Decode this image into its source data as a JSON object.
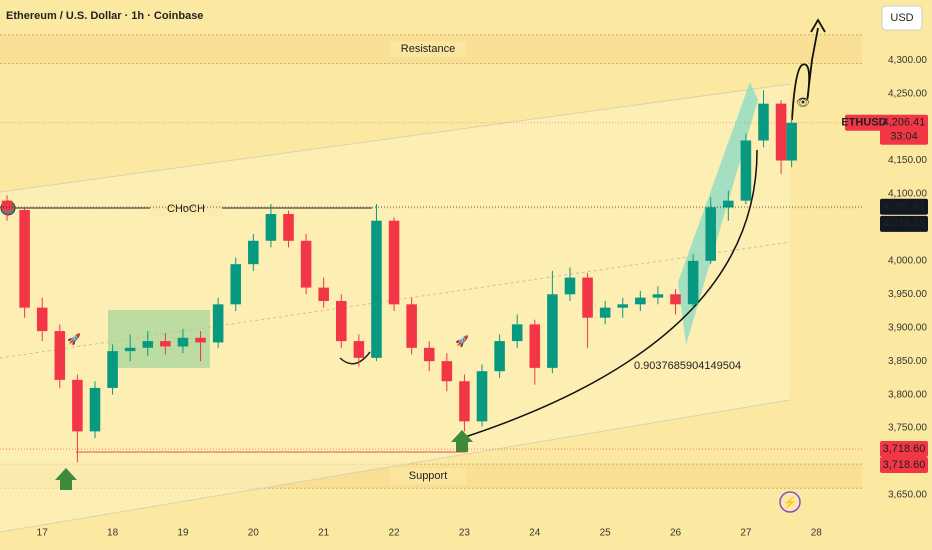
{
  "chart_data": {
    "type": "candlestick",
    "title": "Ethereum / U.S. Dollar · 1h · Coinbase",
    "currency": "USD",
    "symbol": "ETHUSD",
    "countdown": "33:04",
    "annotations": {
      "resistance": "Resistance",
      "support": "Support",
      "choch": "CHoCH",
      "fib": "0.9037685904149504"
    },
    "zones": [
      {
        "name": "Resistance",
        "low": 4295,
        "high": 4338
      },
      {
        "name": "Support",
        "low": 3660,
        "high": 3696
      }
    ],
    "up_color": "#089981",
    "down_color": "#f23645",
    "xlim": [
      16.4,
      28.65
    ],
    "xticks": [
      17,
      18,
      19,
      20,
      21,
      22,
      23,
      24,
      25,
      26,
      27,
      28
    ],
    "ylim": [
      3620,
      4390
    ],
    "yticks": [
      {
        "value": 3650,
        "label": "3,650.00"
      },
      {
        "value": 3700,
        "label": "3,700.00"
      },
      {
        "value": 3750,
        "label": "3,750.00"
      },
      {
        "value": 3800,
        "label": "3,800.00"
      },
      {
        "value": 3850,
        "label": "3,850.00"
      },
      {
        "value": 3900,
        "label": "3,900.00"
      },
      {
        "value": 3950,
        "label": "3,950.00"
      },
      {
        "value": 4000,
        "label": "4,000.00"
      },
      {
        "value": 4050,
        "label": "4,050.00"
      },
      {
        "value": 4100,
        "label": "4,100.00"
      },
      {
        "value": 4150,
        "label": "4,150.00"
      },
      {
        "value": 4200,
        "label": "4,200.00"
      },
      {
        "value": 4250,
        "label": "4,250.00"
      },
      {
        "value": 4300,
        "label": "4,300.00"
      }
    ],
    "price_labels": [
      {
        "value": 4206.41,
        "label": "4,206.41",
        "color": "#f23645"
      },
      {
        "value": 4080.81,
        "label": "4,080.81",
        "color": "#131722"
      },
      {
        "value": 4079.29,
        "label": "4,079.29",
        "color": "#131722"
      },
      {
        "value": 3718.6,
        "label": "3,718.60",
        "color": "#f23645"
      },
      {
        "value": 3718.6,
        "label": "3,718.60",
        "color": "#f23645"
      }
    ],
    "candles": [
      {
        "x": 16.5,
        "open": 4090,
        "high": 4098,
        "low": 4060,
        "close": 4076
      },
      {
        "x": 16.75,
        "open": 4076,
        "high": 4080,
        "low": 3915,
        "close": 3930
      },
      {
        "x": 17.0,
        "open": 3930,
        "high": 3945,
        "low": 3880,
        "close": 3895
      },
      {
        "x": 17.25,
        "open": 3895,
        "high": 3905,
        "low": 3810,
        "close": 3822
      },
      {
        "x": 17.5,
        "open": 3822,
        "high": 3830,
        "low": 3699,
        "close": 3745
      },
      {
        "x": 17.75,
        "open": 3745,
        "high": 3820,
        "low": 3735,
        "close": 3810
      },
      {
        "x": 18.0,
        "open": 3810,
        "high": 3875,
        "low": 3800,
        "close": 3865
      },
      {
        "x": 18.25,
        "open": 3865,
        "high": 3890,
        "low": 3850,
        "close": 3870
      },
      {
        "x": 18.5,
        "open": 3870,
        "high": 3895,
        "low": 3858,
        "close": 3880
      },
      {
        "x": 18.75,
        "open": 3880,
        "high": 3892,
        "low": 3860,
        "close": 3872
      },
      {
        "x": 19.0,
        "open": 3872,
        "high": 3898,
        "low": 3862,
        "close": 3885
      },
      {
        "x": 19.25,
        "open": 3885,
        "high": 3895,
        "low": 3850,
        "close": 3878
      },
      {
        "x": 19.5,
        "open": 3878,
        "high": 3945,
        "low": 3870,
        "close": 3935
      },
      {
        "x": 19.75,
        "open": 3935,
        "high": 4005,
        "low": 3925,
        "close": 3995
      },
      {
        "x": 20.0,
        "open": 3995,
        "high": 4040,
        "low": 3985,
        "close": 4030
      },
      {
        "x": 20.25,
        "open": 4030,
        "high": 4085,
        "low": 4020,
        "close": 4070
      },
      {
        "x": 20.5,
        "open": 4070,
        "high": 4075,
        "low": 4020,
        "close": 4030
      },
      {
        "x": 20.75,
        "open": 4030,
        "high": 4040,
        "low": 3950,
        "close": 3960
      },
      {
        "x": 21.0,
        "open": 3960,
        "high": 3975,
        "low": 3930,
        "close": 3940
      },
      {
        "x": 21.25,
        "open": 3940,
        "high": 3950,
        "low": 3870,
        "close": 3880
      },
      {
        "x": 21.5,
        "open": 3880,
        "high": 3890,
        "low": 3842,
        "close": 3855
      },
      {
        "x": 21.75,
        "open": 3855,
        "high": 4085,
        "low": 3850,
        "close": 4060
      },
      {
        "x": 22.0,
        "open": 4060,
        "high": 4065,
        "low": 3925,
        "close": 3935
      },
      {
        "x": 22.25,
        "open": 3935,
        "high": 3945,
        "low": 3860,
        "close": 3870
      },
      {
        "x": 22.5,
        "open": 3870,
        "high": 3880,
        "low": 3835,
        "close": 3850
      },
      {
        "x": 22.75,
        "open": 3850,
        "high": 3862,
        "low": 3805,
        "close": 3820
      },
      {
        "x": 23.0,
        "open": 3820,
        "high": 3830,
        "low": 3745,
        "close": 3760
      },
      {
        "x": 23.25,
        "open": 3760,
        "high": 3845,
        "low": 3752,
        "close": 3835
      },
      {
        "x": 23.5,
        "open": 3835,
        "high": 3890,
        "low": 3825,
        "close": 3880
      },
      {
        "x": 23.75,
        "open": 3880,
        "high": 3920,
        "low": 3870,
        "close": 3905
      },
      {
        "x": 24.0,
        "open": 3905,
        "high": 3912,
        "low": 3815,
        "close": 3840
      },
      {
        "x": 24.25,
        "open": 3840,
        "high": 3985,
        "low": 3832,
        "close": 3950
      },
      {
        "x": 24.5,
        "open": 3950,
        "high": 3990,
        "low": 3940,
        "close": 3975
      },
      {
        "x": 24.75,
        "open": 3975,
        "high": 3982,
        "low": 3870,
        "close": 3915
      },
      {
        "x": 25.0,
        "open": 3915,
        "high": 3940,
        "low": 3905,
        "close": 3930
      },
      {
        "x": 25.25,
        "open": 3930,
        "high": 3945,
        "low": 3915,
        "close": 3935
      },
      {
        "x": 25.5,
        "open": 3935,
        "high": 3955,
        "low": 3925,
        "close": 3945
      },
      {
        "x": 25.75,
        "open": 3945,
        "high": 3962,
        "low": 3935,
        "close": 3950
      },
      {
        "x": 26.0,
        "open": 3950,
        "high": 3958,
        "low": 3920,
        "close": 3935
      },
      {
        "x": 26.25,
        "open": 3935,
        "high": 4010,
        "low": 3930,
        "close": 4000
      },
      {
        "x": 26.5,
        "open": 4000,
        "high": 4095,
        "low": 3995,
        "close": 4080
      },
      {
        "x": 26.75,
        "open": 4080,
        "high": 4105,
        "low": 4060,
        "close": 4090
      },
      {
        "x": 27.0,
        "open": 4090,
        "high": 4190,
        "low": 4085,
        "close": 4180
      },
      {
        "x": 27.25,
        "open": 4180,
        "high": 4255,
        "low": 4170,
        "close": 4235
      },
      {
        "x": 27.5,
        "open": 4235,
        "high": 4240,
        "low": 4130,
        "close": 4150
      },
      {
        "x": 27.65,
        "open": 4150,
        "high": 4215,
        "low": 4140,
        "close": 4206.41
      }
    ]
  }
}
